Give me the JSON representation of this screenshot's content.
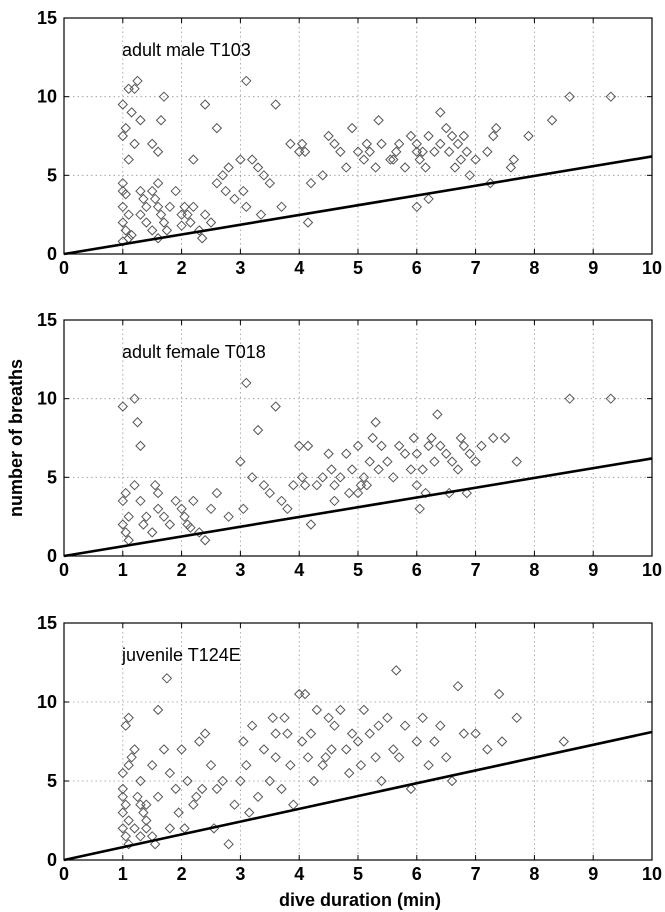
{
  "chart_data": [
    {
      "type": "scatter",
      "title": "adult male T103",
      "xlim": [
        0,
        10
      ],
      "ylim": [
        0,
        15
      ],
      "xticks": [
        "0",
        "1",
        "2",
        "3",
        "4",
        "5",
        "6",
        "7",
        "8",
        "9",
        "10"
      ],
      "yticks": [
        "0",
        "5",
        "10",
        "15"
      ],
      "grid": true,
      "line": {
        "x": [
          0,
          10
        ],
        "y": [
          0,
          6.2
        ]
      },
      "points": [
        [
          1.0,
          4.5
        ],
        [
          1.0,
          4.0
        ],
        [
          1.05,
          3.8
        ],
        [
          1.0,
          3.0
        ],
        [
          1.1,
          2.5
        ],
        [
          1.0,
          2.0
        ],
        [
          1.05,
          1.5
        ],
        [
          1.1,
          1.0
        ],
        [
          1.0,
          0.8
        ],
        [
          1.15,
          1.2
        ],
        [
          1.0,
          7.5
        ],
        [
          1.05,
          8.0
        ],
        [
          1.0,
          9.5
        ],
        [
          1.1,
          10.5
        ],
        [
          1.2,
          10.5
        ],
        [
          1.25,
          11.0
        ],
        [
          1.15,
          9.0
        ],
        [
          1.3,
          8.5
        ],
        [
          1.2,
          7.0
        ],
        [
          1.1,
          6.0
        ],
        [
          1.3,
          4.0
        ],
        [
          1.35,
          3.5
        ],
        [
          1.4,
          3.0
        ],
        [
          1.3,
          2.5
        ],
        [
          1.4,
          2.0
        ],
        [
          1.5,
          1.5
        ],
        [
          1.5,
          4.0
        ],
        [
          1.6,
          4.5
        ],
        [
          1.55,
          3.5
        ],
        [
          1.6,
          3.0
        ],
        [
          1.65,
          2.5
        ],
        [
          1.7,
          2.0
        ],
        [
          1.75,
          1.5
        ],
        [
          1.6,
          1.0
        ],
        [
          1.5,
          7.0
        ],
        [
          1.6,
          6.5
        ],
        [
          1.7,
          10.0
        ],
        [
          1.65,
          8.5
        ],
        [
          1.8,
          3.0
        ],
        [
          1.9,
          4.0
        ],
        [
          2.0,
          2.5
        ],
        [
          2.05,
          3.0
        ],
        [
          2.1,
          2.5
        ],
        [
          2.2,
          3.0
        ],
        [
          2.0,
          1.8
        ],
        [
          2.15,
          2.0
        ],
        [
          2.2,
          6.0
        ],
        [
          2.3,
          1.5
        ],
        [
          2.35,
          1.0
        ],
        [
          2.4,
          2.5
        ],
        [
          2.4,
          9.5
        ],
        [
          2.5,
          2.0
        ],
        [
          2.6,
          8.0
        ],
        [
          2.6,
          4.5
        ],
        [
          2.7,
          5.0
        ],
        [
          2.75,
          4.0
        ],
        [
          2.8,
          5.5
        ],
        [
          2.9,
          3.5
        ],
        [
          3.0,
          6.0
        ],
        [
          3.05,
          4.0
        ],
        [
          3.1,
          3.0
        ],
        [
          3.1,
          11.0
        ],
        [
          3.2,
          6.0
        ],
        [
          3.3,
          5.5
        ],
        [
          3.35,
          2.5
        ],
        [
          3.4,
          5.0
        ],
        [
          3.5,
          4.5
        ],
        [
          3.6,
          9.5
        ],
        [
          3.7,
          3.0
        ],
        [
          3.85,
          7.0
        ],
        [
          4.0,
          6.5
        ],
        [
          4.05,
          7.0
        ],
        [
          4.1,
          6.5
        ],
        [
          4.15,
          2.0
        ],
        [
          4.2,
          4.5
        ],
        [
          4.4,
          5.0
        ],
        [
          4.5,
          7.5
        ],
        [
          4.6,
          7.0
        ],
        [
          4.7,
          6.5
        ],
        [
          4.8,
          5.5
        ],
        [
          4.9,
          8.0
        ],
        [
          5.0,
          6.5
        ],
        [
          5.1,
          6.0
        ],
        [
          5.15,
          7.0
        ],
        [
          5.2,
          6.5
        ],
        [
          5.3,
          5.5
        ],
        [
          5.35,
          8.5
        ],
        [
          5.4,
          7.0
        ],
        [
          5.6,
          6.0
        ],
        [
          5.65,
          6.5
        ],
        [
          5.7,
          7.0
        ],
        [
          5.8,
          5.5
        ],
        [
          5.9,
          7.5
        ],
        [
          6.0,
          7.0
        ],
        [
          6.05,
          6.0
        ],
        [
          6.1,
          6.5
        ],
        [
          6.15,
          5.5
        ],
        [
          6.2,
          7.5
        ],
        [
          6.3,
          6.5
        ],
        [
          6.4,
          7.0
        ],
        [
          6.4,
          9.0
        ],
        [
          6.5,
          8.0
        ],
        [
          6.55,
          6.5
        ],
        [
          6.6,
          7.5
        ],
        [
          6.65,
          5.5
        ],
        [
          6.7,
          7.0
        ],
        [
          6.75,
          6.0
        ],
        [
          6.8,
          7.5
        ],
        [
          6.85,
          6.5
        ],
        [
          6.9,
          5.0
        ],
        [
          7.0,
          6.0
        ],
        [
          7.2,
          6.5
        ],
        [
          7.25,
          4.5
        ],
        [
          7.3,
          7.5
        ],
        [
          7.35,
          8.0
        ],
        [
          7.6,
          5.5
        ],
        [
          7.65,
          6.0
        ],
        [
          7.9,
          7.5
        ],
        [
          8.3,
          8.5
        ],
        [
          8.6,
          10.0
        ],
        [
          9.3,
          10.0
        ],
        [
          6.0,
          3.0
        ],
        [
          6.2,
          3.5
        ],
        [
          6.0,
          6.5
        ],
        [
          5.55,
          6.0
        ]
      ]
    },
    {
      "type": "scatter",
      "title": "adult female T018",
      "ylabel": "number of breaths",
      "xlim": [
        0,
        10
      ],
      "ylim": [
        0,
        15
      ],
      "xticks": [
        "0",
        "1",
        "2",
        "3",
        "4",
        "5",
        "6",
        "7",
        "8",
        "9",
        "10"
      ],
      "yticks": [
        "0",
        "5",
        "10",
        "15"
      ],
      "grid": true,
      "line": {
        "x": [
          0,
          10
        ],
        "y": [
          0,
          6.2
        ]
      },
      "points": [
        [
          1.0,
          9.5
        ],
        [
          1.05,
          4.0
        ],
        [
          1.0,
          3.5
        ],
        [
          1.1,
          2.5
        ],
        [
          1.0,
          2.0
        ],
        [
          1.05,
          1.5
        ],
        [
          1.1,
          1.0
        ],
        [
          1.2,
          10.0
        ],
        [
          1.25,
          8.5
        ],
        [
          1.3,
          7.0
        ],
        [
          1.2,
          4.5
        ],
        [
          1.3,
          3.5
        ],
        [
          1.4,
          2.5
        ],
        [
          1.35,
          2.0
        ],
        [
          1.5,
          1.5
        ],
        [
          1.55,
          4.5
        ],
        [
          1.6,
          4.0
        ],
        [
          1.6,
          3.0
        ],
        [
          1.7,
          2.5
        ],
        [
          1.8,
          2.0
        ],
        [
          1.9,
          3.5
        ],
        [
          2.0,
          3.0
        ],
        [
          2.05,
          2.5
        ],
        [
          2.1,
          2.0
        ],
        [
          2.15,
          1.8
        ],
        [
          2.2,
          3.5
        ],
        [
          2.3,
          1.5
        ],
        [
          2.4,
          1.0
        ],
        [
          2.5,
          3.0
        ],
        [
          2.6,
          4.0
        ],
        [
          2.8,
          2.5
        ],
        [
          3.0,
          6.0
        ],
        [
          3.05,
          3.0
        ],
        [
          3.1,
          11.0
        ],
        [
          3.2,
          5.0
        ],
        [
          3.3,
          8.0
        ],
        [
          3.4,
          4.5
        ],
        [
          3.5,
          4.0
        ],
        [
          3.6,
          9.5
        ],
        [
          3.7,
          3.5
        ],
        [
          3.8,
          3.0
        ],
        [
          3.9,
          4.5
        ],
        [
          4.0,
          7.0
        ],
        [
          4.05,
          5.0
        ],
        [
          4.1,
          4.5
        ],
        [
          4.15,
          7.0
        ],
        [
          4.2,
          2.0
        ],
        [
          4.3,
          4.5
        ],
        [
          4.4,
          5.0
        ],
        [
          4.5,
          6.5
        ],
        [
          4.55,
          5.5
        ],
        [
          4.6,
          4.5
        ],
        [
          4.7,
          5.0
        ],
        [
          4.8,
          6.5
        ],
        [
          4.85,
          4.0
        ],
        [
          4.9,
          5.5
        ],
        [
          5.0,
          7.0
        ],
        [
          5.05,
          4.5
        ],
        [
          5.1,
          5.0
        ],
        [
          5.15,
          4.5
        ],
        [
          5.2,
          6.0
        ],
        [
          5.25,
          7.5
        ],
        [
          5.3,
          8.5
        ],
        [
          5.35,
          5.5
        ],
        [
          5.4,
          7.0
        ],
        [
          5.5,
          6.0
        ],
        [
          5.6,
          5.0
        ],
        [
          5.7,
          7.0
        ],
        [
          5.8,
          6.5
        ],
        [
          5.9,
          5.5
        ],
        [
          5.95,
          7.5
        ],
        [
          6.0,
          6.5
        ],
        [
          6.05,
          3.0
        ],
        [
          6.1,
          5.5
        ],
        [
          6.15,
          4.0
        ],
        [
          6.2,
          7.0
        ],
        [
          6.3,
          6.0
        ],
        [
          6.35,
          9.0
        ],
        [
          6.4,
          7.0
        ],
        [
          6.5,
          6.5
        ],
        [
          6.55,
          4.0
        ],
        [
          6.6,
          6.0
        ],
        [
          6.7,
          5.5
        ],
        [
          6.75,
          7.5
        ],
        [
          6.8,
          7.0
        ],
        [
          6.85,
          4.0
        ],
        [
          6.9,
          6.5
        ],
        [
          7.0,
          6.0
        ],
        [
          7.1,
          7.0
        ],
        [
          7.3,
          7.5
        ],
        [
          7.5,
          7.5
        ],
        [
          7.7,
          6.0
        ],
        [
          8.6,
          10.0
        ],
        [
          9.3,
          10.0
        ],
        [
          5.0,
          4.0
        ],
        [
          4.6,
          3.5
        ],
        [
          6.0,
          4.5
        ],
        [
          6.25,
          7.5
        ]
      ]
    },
    {
      "type": "scatter",
      "title": "juvenile T124E",
      "xlabel": "dive duration (min)",
      "xlim": [
        0,
        10
      ],
      "ylim": [
        0,
        15
      ],
      "xticks": [
        "0",
        "1",
        "2",
        "3",
        "4",
        "5",
        "6",
        "7",
        "8",
        "9",
        "10"
      ],
      "yticks": [
        "0",
        "5",
        "10",
        "15"
      ],
      "grid": true,
      "line": {
        "x": [
          0,
          10
        ],
        "y": [
          0,
          8.1
        ]
      },
      "points": [
        [
          1.0,
          4.5
        ],
        [
          1.0,
          4.0
        ],
        [
          1.05,
          3.5
        ],
        [
          1.0,
          3.0
        ],
        [
          1.1,
          2.5
        ],
        [
          1.0,
          2.0
        ],
        [
          1.05,
          1.5
        ],
        [
          1.1,
          1.0
        ],
        [
          1.0,
          5.5
        ],
        [
          1.1,
          6.0
        ],
        [
          1.15,
          6.5
        ],
        [
          1.05,
          8.5
        ],
        [
          1.1,
          9.0
        ],
        [
          1.2,
          7.0
        ],
        [
          1.3,
          5.0
        ],
        [
          1.25,
          4.0
        ],
        [
          1.3,
          3.5
        ],
        [
          1.35,
          3.0
        ],
        [
          1.4,
          2.5
        ],
        [
          1.4,
          2.0
        ],
        [
          1.5,
          1.5
        ],
        [
          1.55,
          1.0
        ],
        [
          1.6,
          4.0
        ],
        [
          1.5,
          6.0
        ],
        [
          1.6,
          9.5
        ],
        [
          1.7,
          7.0
        ],
        [
          1.75,
          11.5
        ],
        [
          1.8,
          5.5
        ],
        [
          1.8,
          2.0
        ],
        [
          1.9,
          4.5
        ],
        [
          1.95,
          3.0
        ],
        [
          2.0,
          7.0
        ],
        [
          2.05,
          2.0
        ],
        [
          2.1,
          5.0
        ],
        [
          2.2,
          3.5
        ],
        [
          2.3,
          7.5
        ],
        [
          2.35,
          4.5
        ],
        [
          2.4,
          8.0
        ],
        [
          2.5,
          6.0
        ],
        [
          2.55,
          2.0
        ],
        [
          2.6,
          4.5
        ],
        [
          2.7,
          5.0
        ],
        [
          2.8,
          1.0
        ],
        [
          2.9,
          3.5
        ],
        [
          3.0,
          5.0
        ],
        [
          3.05,
          7.5
        ],
        [
          3.1,
          6.0
        ],
        [
          3.15,
          3.0
        ],
        [
          3.2,
          8.5
        ],
        [
          3.3,
          4.0
        ],
        [
          3.4,
          7.0
        ],
        [
          3.5,
          5.0
        ],
        [
          3.55,
          9.0
        ],
        [
          3.6,
          6.5
        ],
        [
          3.7,
          4.5
        ],
        [
          3.75,
          9.0
        ],
        [
          3.8,
          8.0
        ],
        [
          3.85,
          6.0
        ],
        [
          3.9,
          3.5
        ],
        [
          4.0,
          10.5
        ],
        [
          4.05,
          7.5
        ],
        [
          4.1,
          10.5
        ],
        [
          4.15,
          6.5
        ],
        [
          4.2,
          8.0
        ],
        [
          4.25,
          5.0
        ],
        [
          4.3,
          9.5
        ],
        [
          4.4,
          6.0
        ],
        [
          4.5,
          9.0
        ],
        [
          4.55,
          7.0
        ],
        [
          4.6,
          8.5
        ],
        [
          4.7,
          9.5
        ],
        [
          4.8,
          7.0
        ],
        [
          4.85,
          5.5
        ],
        [
          4.9,
          8.0
        ],
        [
          5.0,
          7.5
        ],
        [
          5.05,
          6.0
        ],
        [
          5.1,
          9.5
        ],
        [
          5.2,
          8.0
        ],
        [
          5.3,
          6.5
        ],
        [
          5.35,
          8.5
        ],
        [
          5.4,
          5.0
        ],
        [
          5.5,
          9.0
        ],
        [
          5.6,
          7.0
        ],
        [
          5.65,
          12.0
        ],
        [
          5.7,
          6.5
        ],
        [
          5.8,
          8.5
        ],
        [
          5.9,
          4.5
        ],
        [
          6.0,
          7.5
        ],
        [
          6.1,
          9.0
        ],
        [
          6.2,
          6.0
        ],
        [
          6.3,
          7.5
        ],
        [
          6.4,
          8.5
        ],
        [
          6.5,
          6.5
        ],
        [
          6.6,
          5.0
        ],
        [
          6.7,
          11.0
        ],
        [
          6.8,
          8.0
        ],
        [
          7.0,
          8.0
        ],
        [
          7.2,
          7.0
        ],
        [
          7.4,
          10.5
        ],
        [
          7.45,
          7.5
        ],
        [
          7.7,
          9.0
        ],
        [
          8.5,
          7.5
        ],
        [
          1.2,
          2.0
        ],
        [
          1.3,
          1.5
        ],
        [
          1.4,
          3.5
        ],
        [
          2.25,
          4.0
        ],
        [
          3.6,
          8.0
        ],
        [
          4.45,
          6.5
        ]
      ]
    }
  ]
}
